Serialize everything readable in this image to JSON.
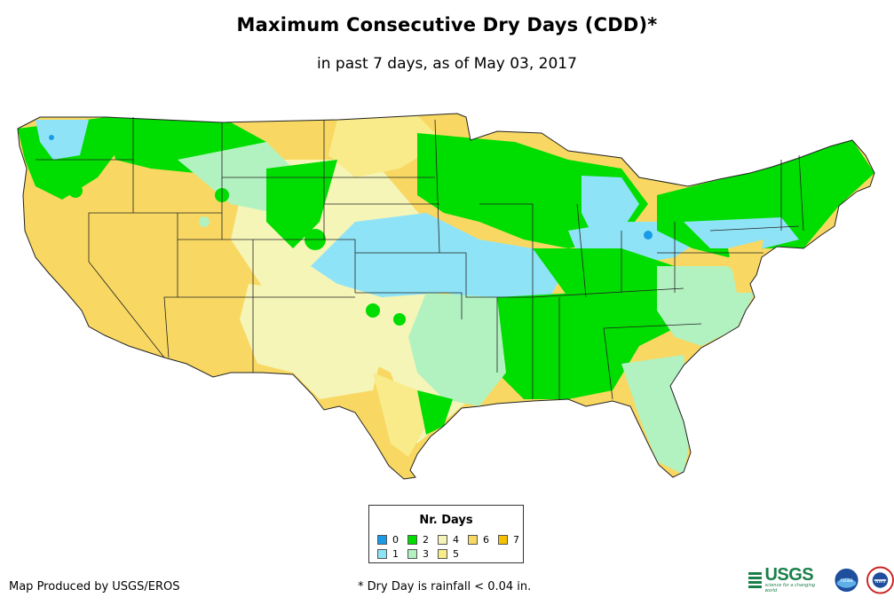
{
  "title": "Maximum Consecutive Dry Days (CDD)*",
  "subtitle": "in past 7 days, as of May 03, 2017",
  "legend": {
    "title": "Nr. Days",
    "items": [
      {
        "label": "0",
        "color": "#1a9be6"
      },
      {
        "label": "1",
        "color": "#8fe3f7"
      },
      {
        "label": "2",
        "color": "#00dd00"
      },
      {
        "label": "3",
        "color": "#b2f2c0"
      },
      {
        "label": "4",
        "color": "#f5f5b8"
      },
      {
        "label": "5",
        "color": "#f9eb8a"
      },
      {
        "label": "6",
        "color": "#f8d862"
      },
      {
        "label": "7",
        "color": "#f5c000"
      }
    ]
  },
  "footer": {
    "credit": "Map Produced by USGS/EROS",
    "note": "* Dry Day is rainfall < 0.04 in."
  },
  "logos": {
    "usgs": "USGS",
    "usgs_tagline": "science for a changing world",
    "noaa": "noaa",
    "nws": "NWS"
  }
}
